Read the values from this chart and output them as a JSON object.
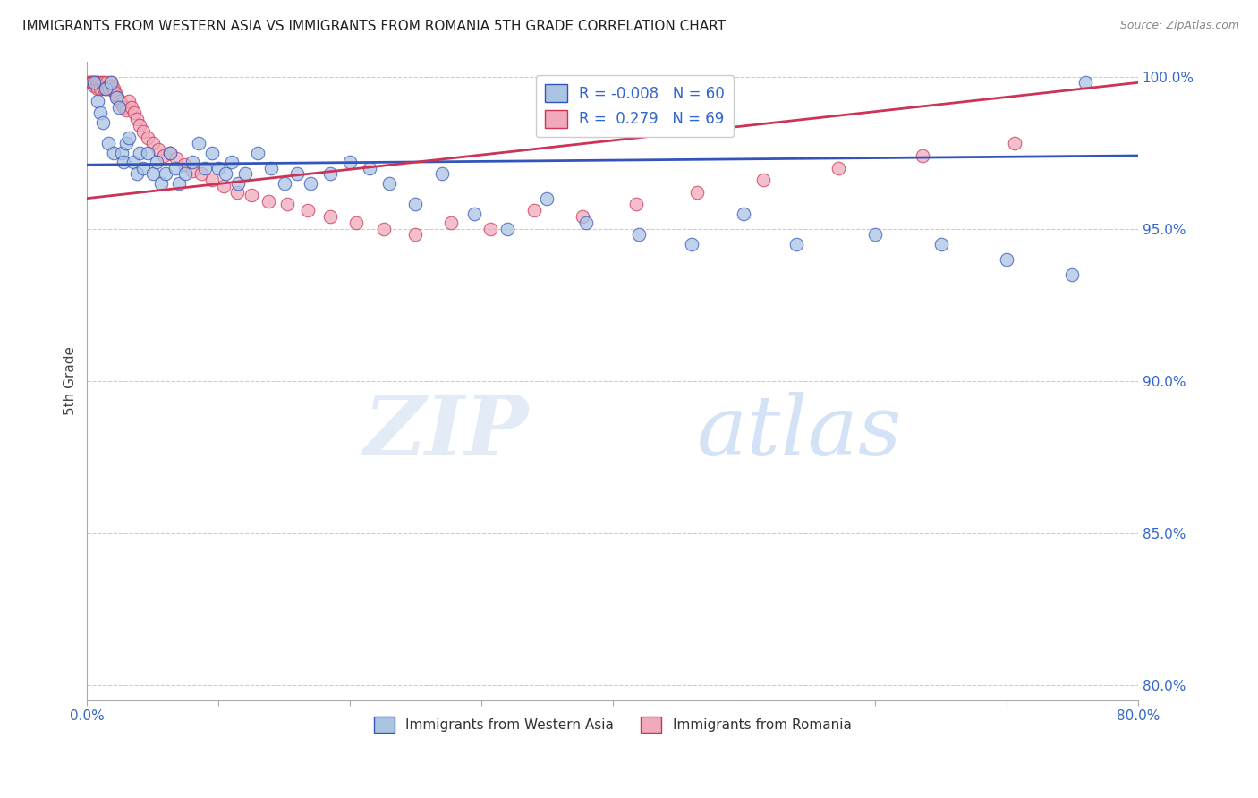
{
  "title": "IMMIGRANTS FROM WESTERN ASIA VS IMMIGRANTS FROM ROMANIA 5TH GRADE CORRELATION CHART",
  "source": "Source: ZipAtlas.com",
  "ylabel": "5th Grade",
  "legend_label_blue": "Immigrants from Western Asia",
  "legend_label_pink": "Immigrants from Romania",
  "R_blue": -0.008,
  "N_blue": 60,
  "R_pink": 0.279,
  "N_pink": 69,
  "xlim": [
    0.0,
    0.8
  ],
  "ylim": [
    0.795,
    1.005
  ],
  "x_ticks": [
    0.0,
    0.1,
    0.2,
    0.3,
    0.4,
    0.5,
    0.6,
    0.7,
    0.8
  ],
  "y_ticks": [
    0.8,
    0.85,
    0.9,
    0.95,
    1.0
  ],
  "y_tick_labels": [
    "80.0%",
    "85.0%",
    "90.0%",
    "95.0%",
    "100.0%"
  ],
  "color_blue": "#aac4e2",
  "color_pink": "#f0aabb",
  "trend_color_blue": "#3355bb",
  "trend_color_pink": "#cc3355",
  "blue_x": [
    0.005,
    0.008,
    0.01,
    0.012,
    0.014,
    0.016,
    0.018,
    0.02,
    0.022,
    0.024,
    0.026,
    0.028,
    0.03,
    0.032,
    0.035,
    0.038,
    0.04,
    0.043,
    0.046,
    0.05,
    0.053,
    0.056,
    0.06,
    0.063,
    0.067,
    0.07,
    0.075,
    0.08,
    0.085,
    0.09,
    0.095,
    0.1,
    0.105,
    0.11,
    0.115,
    0.12,
    0.13,
    0.14,
    0.15,
    0.16,
    0.17,
    0.185,
    0.2,
    0.215,
    0.23,
    0.25,
    0.27,
    0.295,
    0.32,
    0.35,
    0.38,
    0.42,
    0.46,
    0.5,
    0.54,
    0.6,
    0.65,
    0.7,
    0.75,
    0.76
  ],
  "blue_y": [
    0.998,
    0.992,
    0.988,
    0.985,
    0.996,
    0.978,
    0.998,
    0.975,
    0.993,
    0.99,
    0.975,
    0.972,
    0.978,
    0.98,
    0.972,
    0.968,
    0.975,
    0.97,
    0.975,
    0.968,
    0.972,
    0.965,
    0.968,
    0.975,
    0.97,
    0.965,
    0.968,
    0.972,
    0.978,
    0.97,
    0.975,
    0.97,
    0.968,
    0.972,
    0.965,
    0.968,
    0.975,
    0.97,
    0.965,
    0.968,
    0.965,
    0.968,
    0.972,
    0.97,
    0.965,
    0.958,
    0.968,
    0.955,
    0.95,
    0.96,
    0.952,
    0.948,
    0.945,
    0.955,
    0.945,
    0.948,
    0.945,
    0.94,
    0.935,
    0.998
  ],
  "pink_x": [
    0.001,
    0.002,
    0.003,
    0.004,
    0.005,
    0.005,
    0.006,
    0.007,
    0.007,
    0.008,
    0.008,
    0.009,
    0.01,
    0.01,
    0.011,
    0.012,
    0.013,
    0.013,
    0.014,
    0.015,
    0.015,
    0.016,
    0.017,
    0.018,
    0.019,
    0.02,
    0.021,
    0.022,
    0.023,
    0.025,
    0.026,
    0.028,
    0.03,
    0.032,
    0.034,
    0.036,
    0.038,
    0.04,
    0.043,
    0.046,
    0.05,
    0.054,
    0.058,
    0.063,
    0.068,
    0.074,
    0.08,
    0.087,
    0.095,
    0.104,
    0.114,
    0.125,
    0.138,
    0.152,
    0.168,
    0.185,
    0.205,
    0.226,
    0.25,
    0.277,
    0.307,
    0.34,
    0.377,
    0.418,
    0.464,
    0.515,
    0.572,
    0.636,
    0.706
  ],
  "pink_y": [
    0.998,
    0.998,
    0.998,
    0.998,
    0.998,
    0.997,
    0.998,
    0.998,
    0.997,
    0.998,
    0.996,
    0.998,
    0.997,
    0.996,
    0.998,
    0.997,
    0.996,
    0.998,
    0.997,
    0.998,
    0.996,
    0.997,
    0.996,
    0.998,
    0.997,
    0.996,
    0.995,
    0.994,
    0.993,
    0.992,
    0.991,
    0.99,
    0.989,
    0.992,
    0.99,
    0.988,
    0.986,
    0.984,
    0.982,
    0.98,
    0.978,
    0.976,
    0.974,
    0.975,
    0.973,
    0.971,
    0.969,
    0.968,
    0.966,
    0.964,
    0.962,
    0.961,
    0.959,
    0.958,
    0.956,
    0.954,
    0.952,
    0.95,
    0.948,
    0.952,
    0.95,
    0.956,
    0.954,
    0.958,
    0.962,
    0.966,
    0.97,
    0.974,
    0.978
  ],
  "watermark_zip": "ZIP",
  "watermark_atlas": "atlas",
  "background_color": "#ffffff",
  "grid_color": "#cccccc",
  "blue_trend_y_at_0": 0.971,
  "blue_trend_y_at_80": 0.974,
  "pink_trend_y_at_0": 0.96,
  "pink_trend_y_at_80": 0.998
}
